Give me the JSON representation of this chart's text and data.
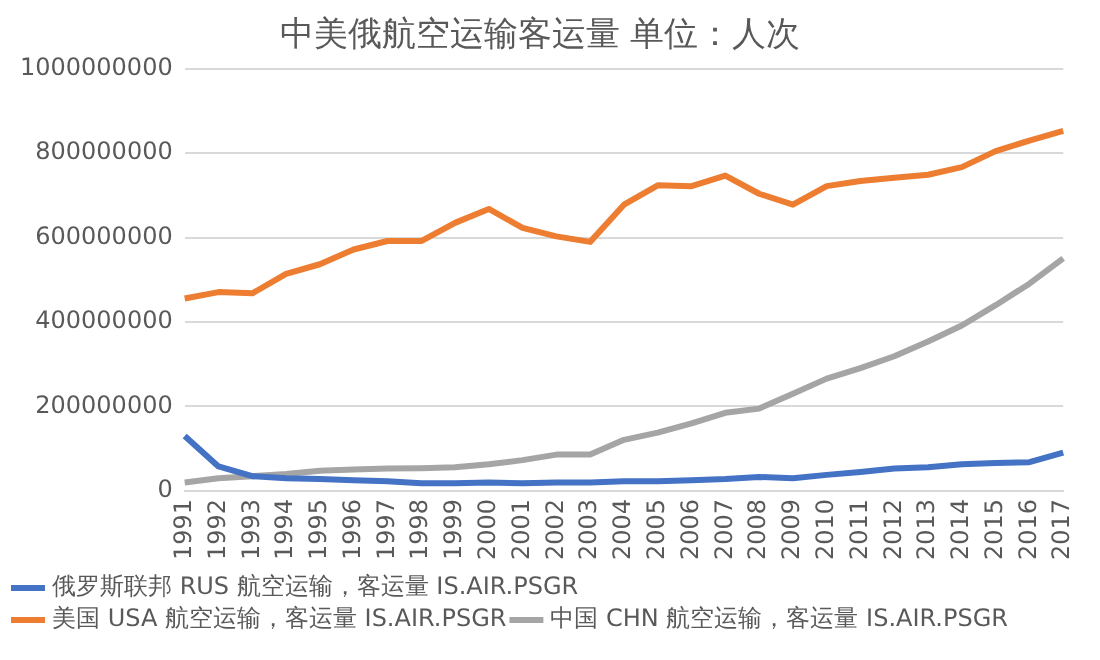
{
  "chart_data": {
    "type": "line",
    "title": "中美俄航空运输客运量 单位：人次",
    "categories": [
      "1991",
      "1992",
      "1993",
      "1994",
      "1995",
      "1996",
      "1997",
      "1998",
      "1999",
      "2000",
      "2001",
      "2002",
      "2003",
      "2004",
      "2005",
      "2006",
      "2007",
      "2008",
      "2009",
      "2010",
      "2011",
      "2012",
      "2013",
      "2014",
      "2015",
      "2016",
      "2017"
    ],
    "series": [
      {
        "name": "俄罗斯联邦 RUS 航空运输，客运量 IS.AIR.PSGR",
        "color": "#4472c4",
        "values": [
          130000000,
          58000000,
          35000000,
          30000000,
          28000000,
          25000000,
          23000000,
          18000000,
          18000000,
          20000000,
          18000000,
          20000000,
          20000000,
          23000000,
          23000000,
          25000000,
          28000000,
          33000000,
          30000000,
          38000000,
          45000000,
          53000000,
          56000000,
          63000000,
          66000000,
          68000000,
          91000000
        ]
      },
      {
        "name": "美国 USA 航空运输，客运量 IS.AIR.PSGR",
        "color": "#ed7d31",
        "values": [
          456000000,
          471000000,
          468000000,
          514000000,
          537000000,
          572000000,
          592000000,
          592000000,
          635000000,
          668000000,
          623000000,
          603000000,
          590000000,
          678000000,
          724000000,
          722000000,
          747000000,
          704000000,
          678000000,
          722000000,
          734000000,
          742000000,
          749000000,
          767000000,
          805000000,
          830000000,
          853000000
        ]
      },
      {
        "name": "中国 CHN 航空运输，客运量 IS.AIR.PSGR",
        "color": "#a5a5a5",
        "values": [
          20000000,
          30000000,
          35000000,
          40000000,
          48000000,
          51000000,
          53000000,
          54000000,
          56000000,
          63000000,
          73000000,
          86000000,
          86000000,
          121000000,
          138000000,
          160000000,
          185000000,
          195000000,
          230000000,
          266000000,
          291000000,
          319000000,
          354000000,
          392000000,
          440000000,
          491000000,
          551000000
        ]
      }
    ],
    "ylim": [
      0,
      1000000000
    ],
    "yticks": [
      0,
      200000000,
      400000000,
      600000000,
      800000000,
      1000000000
    ],
    "grid": "y",
    "legend": "bottom",
    "marker": "none",
    "line_style": "solid"
  }
}
